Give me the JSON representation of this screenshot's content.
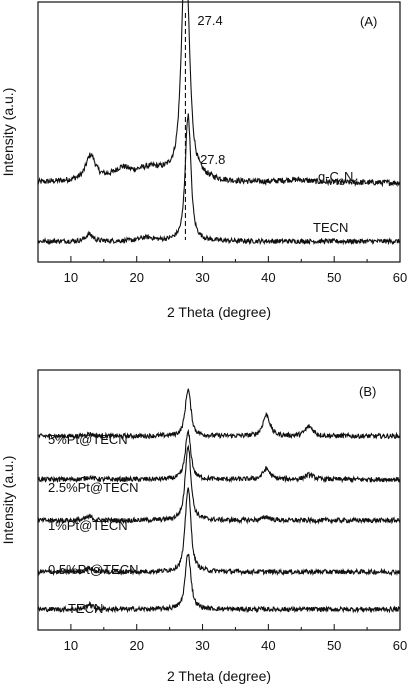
{
  "chart_data": [
    {
      "type": "line",
      "panel_label": "(A)",
      "xlabel": "2 Theta (degree)",
      "ylabel": "Intensity (a.u.)",
      "xlim": [
        5,
        60
      ],
      "xticks": [
        "10",
        "20",
        "30",
        "40",
        "50",
        "60"
      ],
      "grid": false,
      "legend": "none (curves labeled directly)",
      "reference_line": {
        "x": 27.4,
        "style": "dashed"
      },
      "annotations": [
        {
          "text": "27.4",
          "x": 27.4
        },
        {
          "text": "27.8",
          "x": 27.8
        }
      ],
      "series": [
        {
          "name": "g-C3N4",
          "label_main": "g-C",
          "label_sub1": "3",
          "label_mid": "N",
          "label_sub2": "4",
          "baseline": 0.27,
          "noise": 0.012,
          "peaks": [
            {
              "center": 27.4,
              "height": 1.0,
              "width": 0.75
            },
            {
              "center": 13.0,
              "height": 0.1,
              "width": 0.9
            },
            {
              "center": 17.8,
              "height": 0.03,
              "width": 1.2
            },
            {
              "center": 22.0,
              "height": 0.03,
              "width": 2.5
            },
            {
              "center": 44.0,
              "height": 0.012,
              "width": 3.0
            }
          ],
          "shoulder": 0.03
        },
        {
          "name": "TECN",
          "baseline": 0.02,
          "noise": 0.01,
          "peaks": [
            {
              "center": 27.8,
              "height": 0.54,
              "width": 0.55
            },
            {
              "center": 12.8,
              "height": 0.03,
              "width": 0.7
            },
            {
              "center": 21.5,
              "height": 0.015,
              "width": 1.5
            }
          ],
          "shoulder": 0.0
        }
      ]
    },
    {
      "type": "line",
      "panel_label": "(B)",
      "xlabel": "2 Theta (degree)",
      "ylabel": "Intensity (a.u.)",
      "xlim": [
        5,
        60
      ],
      "xticks": [
        "10",
        "20",
        "30",
        "40",
        "50",
        "60"
      ],
      "grid": false,
      "legend": "none (curves labeled directly)",
      "series": [
        {
          "name": "5%Pt@TECN",
          "baseline": 0.76,
          "noise": 0.01,
          "peaks": [
            {
              "center": 27.8,
              "height": 0.2,
              "width": 0.55
            },
            {
              "center": 39.7,
              "height": 0.09,
              "width": 0.7
            },
            {
              "center": 46.2,
              "height": 0.04,
              "width": 0.8
            },
            {
              "center": 12.8,
              "height": 0.01,
              "width": 0.7
            }
          ]
        },
        {
          "name": "2.5%Pt@TECN",
          "baseline": 0.575,
          "noise": 0.01,
          "peaks": [
            {
              "center": 27.8,
              "height": 0.2,
              "width": 0.55
            },
            {
              "center": 39.7,
              "height": 0.045,
              "width": 0.7
            },
            {
              "center": 46.2,
              "height": 0.02,
              "width": 0.8
            },
            {
              "center": 12.8,
              "height": 0.01,
              "width": 0.7
            }
          ]
        },
        {
          "name": "1%Pt@TECN",
          "baseline": 0.4,
          "noise": 0.01,
          "peaks": [
            {
              "center": 27.8,
              "height": 0.32,
              "width": 0.55
            },
            {
              "center": 39.7,
              "height": 0.015,
              "width": 0.7
            },
            {
              "center": 12.8,
              "height": 0.015,
              "width": 0.7
            }
          ]
        },
        {
          "name": "0.5%Pt@TECN",
          "baseline": 0.18,
          "noise": 0.01,
          "peaks": [
            {
              "center": 27.8,
              "height": 0.36,
              "width": 0.55
            },
            {
              "center": 12.8,
              "height": 0.015,
              "width": 0.7
            }
          ]
        },
        {
          "name": "TECN",
          "baseline": 0.02,
          "noise": 0.01,
          "peaks": [
            {
              "center": 27.8,
              "height": 0.24,
              "width": 0.55
            },
            {
              "center": 12.8,
              "height": 0.02,
              "width": 0.7
            }
          ]
        }
      ]
    }
  ]
}
